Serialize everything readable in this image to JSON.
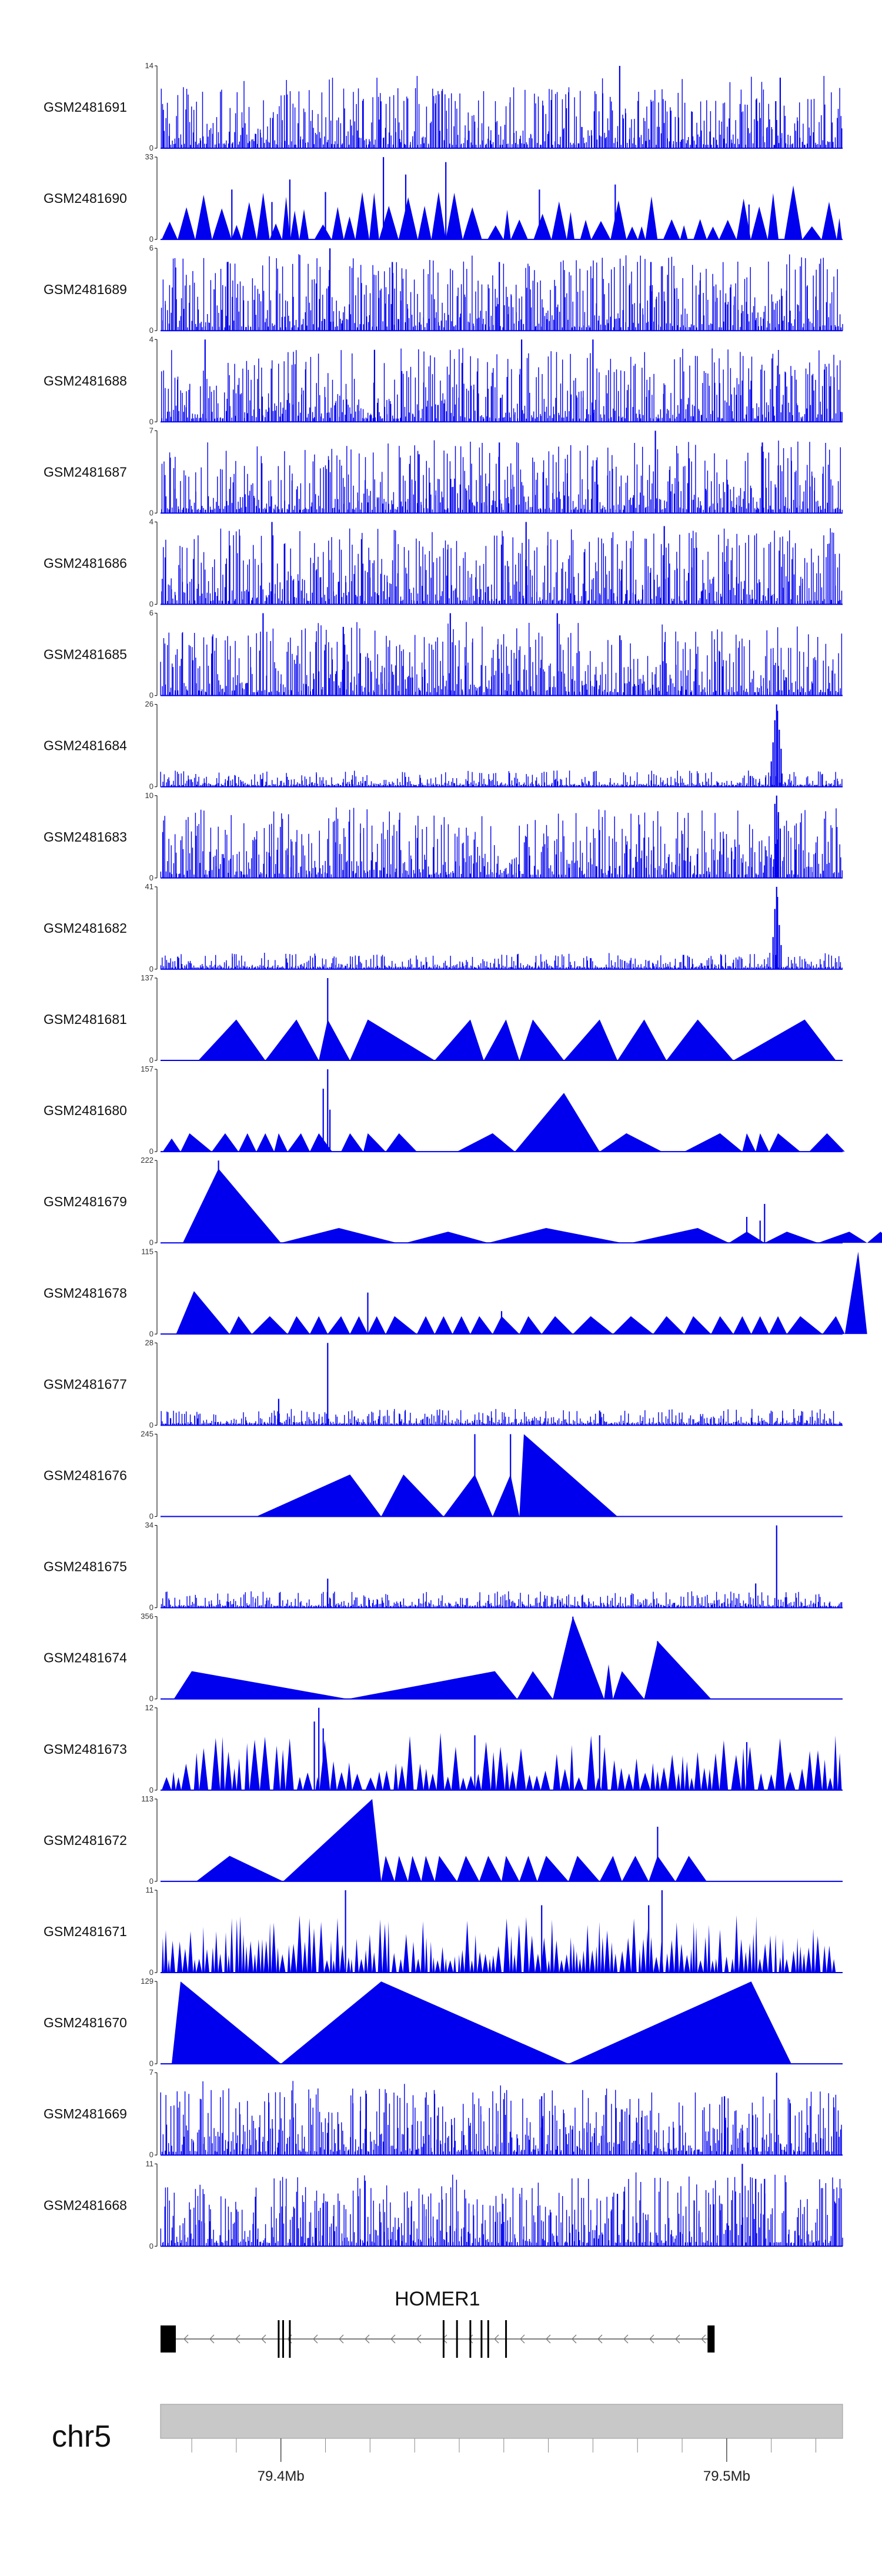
{
  "chart_data": {
    "type": "area",
    "title": "",
    "chromosome": "chr5",
    "region_mb": [
      79.373,
      79.526
    ],
    "x_ticks_mb": [
      79.4,
      79.5
    ],
    "x_tick_labels": [
      "79.4Mb",
      "79.5Mb"
    ],
    "gene": {
      "name": "HOMER1",
      "strand": "-",
      "start_mb": 79.373,
      "end_mb": 79.4972,
      "exons_mb": [
        79.373,
        79.3995,
        79.4005,
        79.402,
        79.4365,
        79.4395,
        79.4425,
        79.445,
        79.4465,
        79.4505,
        79.4965
      ]
    },
    "color": "#0000ee",
    "tracks": [
      {
        "name": "GSM2481691",
        "ymax": 14,
        "style": "dense",
        "density": 0.35,
        "peaks": [
          [
            79.476,
            14
          ],
          [
            79.512,
            12
          ],
          [
            79.511,
            8
          ]
        ]
      },
      {
        "name": "GSM2481690",
        "ymax": 33,
        "style": "triangles",
        "seed_n": 48,
        "peaks": [
          [
            79.423,
            33
          ],
          [
            79.437,
            31
          ],
          [
            79.428,
            26
          ],
          [
            79.402,
            24
          ],
          [
            79.458,
            20
          ],
          [
            79.389,
            20
          ],
          [
            79.41,
            19
          ],
          [
            79.475,
            22
          ],
          [
            79.398,
            15
          ],
          [
            79.505,
            14
          ]
        ]
      },
      {
        "name": "GSM2481689",
        "ymax": 6,
        "style": "dense",
        "density": 0.65,
        "peaks": [
          [
            79.411,
            6
          ],
          [
            79.425,
            5
          ],
          [
            79.388,
            5
          ],
          [
            79.449,
            5
          ],
          [
            79.483,
            5
          ]
        ]
      },
      {
        "name": "GSM2481688",
        "ymax": 4,
        "style": "dense",
        "density": 0.6,
        "peaks": [
          [
            79.383,
            4
          ],
          [
            79.454,
            4
          ],
          [
            79.47,
            4
          ],
          [
            79.421,
            3.5
          ]
        ]
      },
      {
        "name": "GSM2481687",
        "ymax": 7,
        "style": "dense",
        "density": 0.55,
        "peaks": [
          [
            79.484,
            7
          ],
          [
            79.449,
            6
          ],
          [
            79.508,
            6
          ],
          [
            79.431,
            5
          ]
        ]
      },
      {
        "name": "GSM2481686",
        "ymax": 4,
        "style": "dense",
        "density": 0.65,
        "peaks": [
          [
            79.455,
            4
          ],
          [
            79.398,
            4
          ],
          [
            79.486,
            3.8
          ]
        ]
      },
      {
        "name": "GSM2481685",
        "ymax": 6,
        "style": "dense",
        "density": 0.6,
        "peaks": [
          [
            79.438,
            6
          ],
          [
            79.396,
            6
          ],
          [
            79.462,
            6
          ],
          [
            79.414,
            5
          ]
        ]
      },
      {
        "name": "GSM2481684",
        "ymax": 26,
        "style": "dense_low",
        "density": 0.4,
        "peaks": [
          [
            79.5112,
            26
          ],
          [
            79.5114,
            24
          ],
          [
            79.5108,
            21
          ],
          [
            79.5118,
            18
          ],
          [
            79.5104,
            14
          ],
          [
            79.5122,
            12
          ],
          [
            79.51,
            8
          ]
        ]
      },
      {
        "name": "GSM2481683",
        "ymax": 10,
        "style": "dense",
        "density": 0.5,
        "peaks": [
          [
            79.5112,
            10
          ],
          [
            79.5108,
            9
          ],
          [
            79.5116,
            8
          ],
          [
            79.512,
            6
          ]
        ]
      },
      {
        "name": "GSM2481682",
        "ymax": 41,
        "style": "dense_low",
        "density": 0.35,
        "peaks": [
          [
            79.5112,
            41
          ],
          [
            79.5114,
            36
          ],
          [
            79.5108,
            30
          ],
          [
            79.5118,
            22
          ],
          [
            79.5104,
            16
          ],
          [
            79.5122,
            12
          ]
        ]
      },
      {
        "name": "GSM2481681",
        "ymax": 137,
        "style": "triangles",
        "triangles": [
          [
            79.3815,
            79.39,
            79.3965,
            68
          ],
          [
            79.3965,
            79.4035,
            79.4085,
            68
          ],
          [
            79.4085,
            79.4105,
            79.4155,
            68
          ],
          [
            79.4155,
            79.4195,
            79.4345,
            68
          ],
          [
            79.4345,
            79.4425,
            79.4455,
            68
          ],
          [
            79.4455,
            79.4505,
            79.4535,
            68
          ],
          [
            79.4535,
            79.4565,
            79.4635,
            68
          ],
          [
            79.4635,
            79.4715,
            79.4755,
            68
          ],
          [
            79.4755,
            79.4815,
            79.4865,
            68
          ],
          [
            79.4865,
            79.4935,
            79.5015,
            68
          ],
          [
            79.5015,
            79.5175,
            79.5245,
            68
          ]
        ],
        "peaks": [
          [
            79.4105,
            137
          ]
        ]
      },
      {
        "name": "GSM2481680",
        "ymax": 157,
        "style": "triangles",
        "triangles": [
          [
            79.3735,
            79.3755,
            79.3775,
            25
          ],
          [
            79.3775,
            79.3795,
            79.3845,
            35
          ],
          [
            79.3845,
            79.3875,
            79.3905,
            35
          ],
          [
            79.3905,
            79.3925,
            79.3945,
            35
          ],
          [
            79.3945,
            79.3965,
            79.3985,
            35
          ],
          [
            79.3985,
            79.3995,
            79.4015,
            35
          ],
          [
            79.4015,
            79.4045,
            79.4065,
            35
          ],
          [
            79.4065,
            79.4085,
            79.4115,
            35
          ],
          [
            79.4135,
            79.4155,
            79.4185,
            35
          ],
          [
            79.4185,
            79.4195,
            79.4235,
            35
          ],
          [
            79.4235,
            79.4265,
            79.4305,
            35
          ],
          [
            79.4395,
            79.4475,
            79.4525,
            35
          ],
          [
            79.4525,
            79.4635,
            79.4715,
            112
          ],
          [
            79.4715,
            79.4775,
            79.4855,
            35
          ],
          [
            79.4905,
            79.4985,
            79.5035,
            35
          ],
          [
            79.5035,
            79.5045,
            79.5065,
            35
          ],
          [
            79.5065,
            79.5075,
            79.5095,
            35
          ],
          [
            79.5095,
            79.5115,
            79.5165,
            35
          ],
          [
            79.5185,
            79.5225,
            79.5265,
            35
          ]
        ],
        "peaks": [
          [
            79.4105,
            157
          ],
          [
            79.4095,
            120
          ],
          [
            79.411,
            80
          ]
        ]
      },
      {
        "name": "GSM2481679",
        "ymax": 222,
        "style": "triangles",
        "triangles": [
          [
            79.378,
            79.386,
            79.4,
            200
          ],
          [
            79.4,
            79.413,
            79.426,
            40
          ],
          [
            79.428,
            79.4375,
            79.4465,
            30
          ],
          [
            79.4465,
            79.4595,
            79.4765,
            40
          ],
          [
            79.4785,
            79.4935,
            79.5005,
            40
          ],
          [
            79.5005,
            79.5045,
            79.5085,
            30
          ],
          [
            79.5085,
            79.5135,
            79.5205,
            30
          ],
          [
            79.5205,
            79.5275,
            79.5315,
            30
          ],
          [
            79.5315,
            79.5345,
            79.5375,
            30
          ]
        ],
        "peaks": [
          [
            79.386,
            222
          ],
          [
            79.5085,
            105
          ],
          [
            79.5045,
            70
          ],
          [
            79.5075,
            60
          ]
        ]
      },
      {
        "name": "GSM2481678",
        "ymax": 115,
        "style": "triangles",
        "triangles": [
          [
            79.3765,
            79.3805,
            79.3885,
            60
          ],
          [
            79.3885,
            79.3905,
            79.3935,
            25
          ],
          [
            79.3935,
            79.3975,
            79.4015,
            25
          ],
          [
            79.4015,
            79.4035,
            79.4065,
            25
          ],
          [
            79.4065,
            79.4085,
            79.4105,
            25
          ],
          [
            79.4105,
            79.4135,
            79.4155,
            25
          ],
          [
            79.4155,
            79.4175,
            79.4195,
            25
          ],
          [
            79.4195,
            79.4215,
            79.4235,
            25
          ],
          [
            79.4235,
            79.4255,
            79.4305,
            25
          ],
          [
            79.4305,
            79.4325,
            79.4345,
            25
          ],
          [
            79.4345,
            79.4365,
            79.4385,
            25
          ],
          [
            79.4385,
            79.4405,
            79.4425,
            25
          ],
          [
            79.4425,
            79.4445,
            79.4475,
            25
          ],
          [
            79.4475,
            79.4495,
            79.4535,
            25
          ],
          [
            79.4535,
            79.4555,
            79.4585,
            25
          ],
          [
            79.4585,
            79.4615,
            79.4655,
            25
          ],
          [
            79.4655,
            79.4695,
            79.4745,
            25
          ],
          [
            79.4745,
            79.4785,
            79.4835,
            25
          ],
          [
            79.4835,
            79.4865,
            79.4905,
            25
          ],
          [
            79.4905,
            79.4925,
            79.4965,
            25
          ],
          [
            79.4965,
            79.4985,
            79.5015,
            25
          ],
          [
            79.5015,
            79.5035,
            79.5055,
            25
          ],
          [
            79.5055,
            79.5075,
            79.5095,
            25
          ],
          [
            79.5095,
            79.5115,
            79.5135,
            25
          ],
          [
            79.5135,
            79.5165,
            79.5215,
            25
          ],
          [
            79.5215,
            79.5245,
            79.5265,
            25
          ],
          [
            79.5265,
            79.5295,
            79.5315,
            115
          ]
        ],
        "peaks": [
          [
            79.4195,
            58
          ],
          [
            79.4495,
            32
          ]
        ]
      },
      {
        "name": "GSM2481677",
        "ymax": 28,
        "style": "dense_low",
        "density": 0.45,
        "peaks": [
          [
            79.4105,
            28
          ],
          [
            79.3995,
            9
          ],
          [
            79.4715,
            5
          ]
        ]
      },
      {
        "name": "GSM2481676",
        "ymax": 245,
        "style": "triangles",
        "triangles": [
          [
            79.3945,
            79.4155,
            79.4225,
            125
          ],
          [
            79.4225,
            79.4275,
            79.4365,
            125
          ],
          [
            79.4365,
            79.4435,
            79.4475,
            125
          ],
          [
            79.4475,
            79.4515,
            79.4535,
            125
          ],
          [
            79.4535,
            79.4545,
            79.4755,
            245
          ]
        ],
        "peaks": [
          [
            79.4435,
            245
          ],
          [
            79.4515,
            245
          ]
        ]
      },
      {
        "name": "GSM2481675",
        "ymax": 34,
        "style": "dense_low",
        "density": 0.45,
        "peaks": [
          [
            79.5112,
            34
          ],
          [
            79.4105,
            12
          ],
          [
            79.5065,
            10
          ]
        ]
      },
      {
        "name": "GSM2481674",
        "ymax": 356,
        "style": "triangles",
        "triangles": [
          [
            79.376,
            79.38,
            79.415,
            120
          ],
          [
            79.415,
            79.448,
            79.453,
            120
          ],
          [
            79.453,
            79.4565,
            79.461,
            120
          ],
          [
            79.461,
            79.4655,
            79.4725,
            356
          ],
          [
            79.4725,
            79.4735,
            79.4745,
            150
          ],
          [
            79.4745,
            79.4765,
            79.4815,
            120
          ],
          [
            79.4815,
            79.4845,
            79.4965,
            250
          ]
        ],
        "peaks": [
          [
            79.4655,
            356
          ],
          [
            79.4845,
            250
          ]
        ]
      },
      {
        "name": "GSM2481673",
        "ymax": 12,
        "style": "triangles",
        "seed_n": 90,
        "peaks": [
          [
            79.4085,
            12
          ],
          [
            79.4075,
            10
          ],
          [
            79.4095,
            9
          ],
          [
            79.4435,
            8
          ],
          [
            79.4715,
            8
          ],
          [
            79.5045,
            7
          ]
        ]
      },
      {
        "name": "GSM2481672",
        "ymax": 113,
        "style": "triangles",
        "triangles": [
          [
            79.381,
            79.3885,
            79.4005,
            35
          ],
          [
            79.4005,
            79.4205,
            79.4225,
            113
          ],
          [
            79.4225,
            79.4235,
            79.4255,
            35
          ],
          [
            79.4255,
            79.4265,
            79.4285,
            35
          ],
          [
            79.4285,
            79.4295,
            79.4315,
            35
          ],
          [
            79.4315,
            79.4325,
            79.4345,
            35
          ],
          [
            79.4345,
            79.4355,
            79.4395,
            35
          ],
          [
            79.4395,
            79.4415,
            79.4445,
            35
          ],
          [
            79.4445,
            79.4465,
            79.4495,
            35
          ],
          [
            79.4495,
            79.4505,
            79.4535,
            35
          ],
          [
            79.4535,
            79.4555,
            79.4575,
            35
          ],
          [
            79.4575,
            79.4595,
            79.4645,
            35
          ],
          [
            79.4645,
            79.4665,
            79.4715,
            35
          ],
          [
            79.4715,
            79.4745,
            79.4765,
            35
          ],
          [
            79.4765,
            79.4795,
            79.4825,
            35
          ],
          [
            79.4825,
            79.4845,
            79.4885,
            35
          ],
          [
            79.4885,
            79.4915,
            79.4955,
            35
          ]
        ],
        "peaks": [
          [
            79.4845,
            75
          ]
        ]
      },
      {
        "name": "GSM2481671",
        "ymax": 11,
        "style": "triangles",
        "seed_n": 150,
        "peaks": [
          [
            79.4145,
            11
          ],
          [
            79.4855,
            11
          ],
          [
            79.4585,
            9
          ],
          [
            79.4825,
            9
          ]
        ]
      },
      {
        "name": "GSM2481670",
        "ymax": 129,
        "style": "triangles",
        "triangles": [
          [
            79.3755,
            79.3775,
            79.4,
            129
          ],
          [
            79.4,
            79.4225,
            79.4645,
            129
          ],
          [
            79.4645,
            79.5055,
            79.5145,
            129
          ]
        ]
      },
      {
        "name": "GSM2481669",
        "ymax": 7,
        "style": "dense",
        "density": 0.45,
        "peaks": [
          [
            79.5112,
            7
          ],
          [
            79.4585,
            5
          ],
          [
            79.4995,
            5
          ]
        ]
      },
      {
        "name": "GSM2481668",
        "ymax": 11,
        "style": "dense",
        "density": 0.55,
        "peaks": [
          [
            79.5035,
            11
          ],
          [
            79.5065,
            9
          ],
          [
            79.5085,
            9
          ],
          [
            79.4755,
            7
          ]
        ]
      }
    ]
  }
}
